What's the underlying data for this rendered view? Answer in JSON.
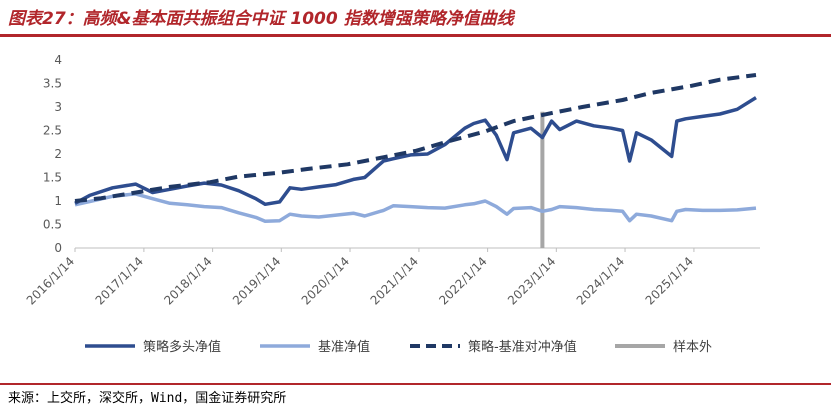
{
  "title": "图表27：高频&基本面共振组合中证 1000 指数增强策略净值曲线",
  "source": "来源：上交所，深交所，Wind，国金证券研究所",
  "colors": {
    "title": "#b1262b",
    "strategy_long": "#2e4d8f",
    "benchmark": "#8eaadb",
    "excess": "#1f3864",
    "out_of_sample": "#a6a6a6"
  },
  "chart_data": {
    "type": "line",
    "title": "",
    "xlabel": "",
    "ylabel": "",
    "ylim": [
      0,
      4
    ],
    "yticks": [
      "0",
      "0.5",
      "1",
      "1.5",
      "2",
      "2.5",
      "3",
      "3.5",
      "4"
    ],
    "xlim": [
      "2016-01-14",
      "2025-12-31"
    ],
    "xticks": [
      "2016/1/14",
      "2017/1/14",
      "2018/1/14",
      "2019/1/14",
      "2020/1/14",
      "2021/1/14",
      "2022/1/14",
      "2023/1/14",
      "2024/1/14",
      "2025/1/14"
    ],
    "grid": false,
    "legend": "bottom",
    "legend_labels": [
      "策略多头净值",
      "基准净值",
      "策略-基准对冲净值",
      "样本外"
    ],
    "series": [
      {
        "name": "策略多头净值",
        "style": "solid",
        "x": [
          "2016-01-14",
          "2016-04-01",
          "2016-08-01",
          "2016-12-01",
          "2017-03-01",
          "2017-06-01",
          "2017-09-01",
          "2017-12-01",
          "2018-03-01",
          "2018-06-01",
          "2018-09-01",
          "2018-10-20",
          "2019-01-05",
          "2019-03-01",
          "2019-05-01",
          "2019-08-01",
          "2019-11-01",
          "2020-02-01",
          "2020-04-01",
          "2020-07-10",
          "2020-09-01",
          "2020-12-01",
          "2021-03-01",
          "2021-06-01",
          "2021-09-15",
          "2021-11-01",
          "2022-01-01",
          "2022-03-01",
          "2022-04-27",
          "2022-06-01",
          "2022-09-01",
          "2022-11-01",
          "2022-12-20",
          "2023-02-01",
          "2023-05-01",
          "2023-08-01",
          "2023-11-01",
          "2024-01-01",
          "2024-02-07",
          "2024-03-15",
          "2024-06-01",
          "2024-09-18",
          "2024-10-15",
          "2024-12-01",
          "2025-03-01",
          "2025-06-01",
          "2025-09-01",
          "2025-12-10"
        ],
        "values": [
          0.95,
          1.12,
          1.28,
          1.36,
          1.18,
          1.25,
          1.32,
          1.38,
          1.34,
          1.22,
          1.05,
          0.93,
          0.98,
          1.28,
          1.25,
          1.3,
          1.35,
          1.46,
          1.5,
          1.85,
          1.9,
          1.98,
          2.0,
          2.2,
          2.55,
          2.65,
          2.72,
          2.4,
          1.88,
          2.45,
          2.55,
          2.35,
          2.7,
          2.52,
          2.7,
          2.6,
          2.55,
          2.5,
          1.85,
          2.45,
          2.3,
          1.95,
          2.7,
          2.75,
          2.8,
          2.85,
          2.95,
          3.2
        ]
      },
      {
        "name": "基准净值",
        "style": "solid",
        "x": [
          "2016-01-14",
          "2016-04-01",
          "2016-08-01",
          "2016-12-01",
          "2017-03-01",
          "2017-06-01",
          "2017-09-01",
          "2017-12-01",
          "2018-03-01",
          "2018-06-01",
          "2018-09-01",
          "2018-10-20",
          "2019-01-05",
          "2019-03-01",
          "2019-05-01",
          "2019-08-01",
          "2019-11-01",
          "2020-02-01",
          "2020-04-01",
          "2020-07-10",
          "2020-09-01",
          "2020-12-01",
          "2021-03-01",
          "2021-06-01",
          "2021-09-15",
          "2021-11-01",
          "2022-01-01",
          "2022-03-01",
          "2022-04-27",
          "2022-06-01",
          "2022-09-01",
          "2022-11-01",
          "2022-12-20",
          "2023-02-01",
          "2023-05-01",
          "2023-08-01",
          "2023-11-01",
          "2024-01-01",
          "2024-02-07",
          "2024-03-15",
          "2024-06-01",
          "2024-09-18",
          "2024-10-15",
          "2024-12-01",
          "2025-03-01",
          "2025-06-01",
          "2025-09-01",
          "2025-12-10"
        ],
        "values": [
          0.92,
          0.99,
          1.1,
          1.15,
          1.05,
          0.95,
          0.92,
          0.88,
          0.86,
          0.75,
          0.65,
          0.57,
          0.58,
          0.72,
          0.68,
          0.66,
          0.7,
          0.74,
          0.68,
          0.8,
          0.9,
          0.88,
          0.86,
          0.85,
          0.92,
          0.94,
          1.0,
          0.88,
          0.72,
          0.84,
          0.86,
          0.78,
          0.82,
          0.88,
          0.86,
          0.82,
          0.8,
          0.78,
          0.58,
          0.72,
          0.68,
          0.58,
          0.78,
          0.82,
          0.8,
          0.8,
          0.81,
          0.85
        ]
      },
      {
        "name": "策略-基准对冲净值",
        "style": "dashed",
        "x": [
          "2016-01-14",
          "2016-06-01",
          "2017-01-01",
          "2017-06-01",
          "2018-01-01",
          "2018-06-01",
          "2019-01-01",
          "2019-06-01",
          "2020-01-01",
          "2020-06-01",
          "2021-01-01",
          "2021-06-01",
          "2022-01-01",
          "2022-06-01",
          "2023-01-01",
          "2023-06-01",
          "2024-01-01",
          "2024-06-01",
          "2025-01-01",
          "2025-06-01",
          "2025-12-10"
        ],
        "values": [
          1.0,
          1.06,
          1.2,
          1.3,
          1.4,
          1.52,
          1.6,
          1.68,
          1.78,
          1.9,
          2.07,
          2.25,
          2.48,
          2.7,
          2.88,
          3.0,
          3.15,
          3.3,
          3.45,
          3.58,
          3.68
        ]
      }
    ],
    "out_of_sample_start": "2022-11-01"
  }
}
